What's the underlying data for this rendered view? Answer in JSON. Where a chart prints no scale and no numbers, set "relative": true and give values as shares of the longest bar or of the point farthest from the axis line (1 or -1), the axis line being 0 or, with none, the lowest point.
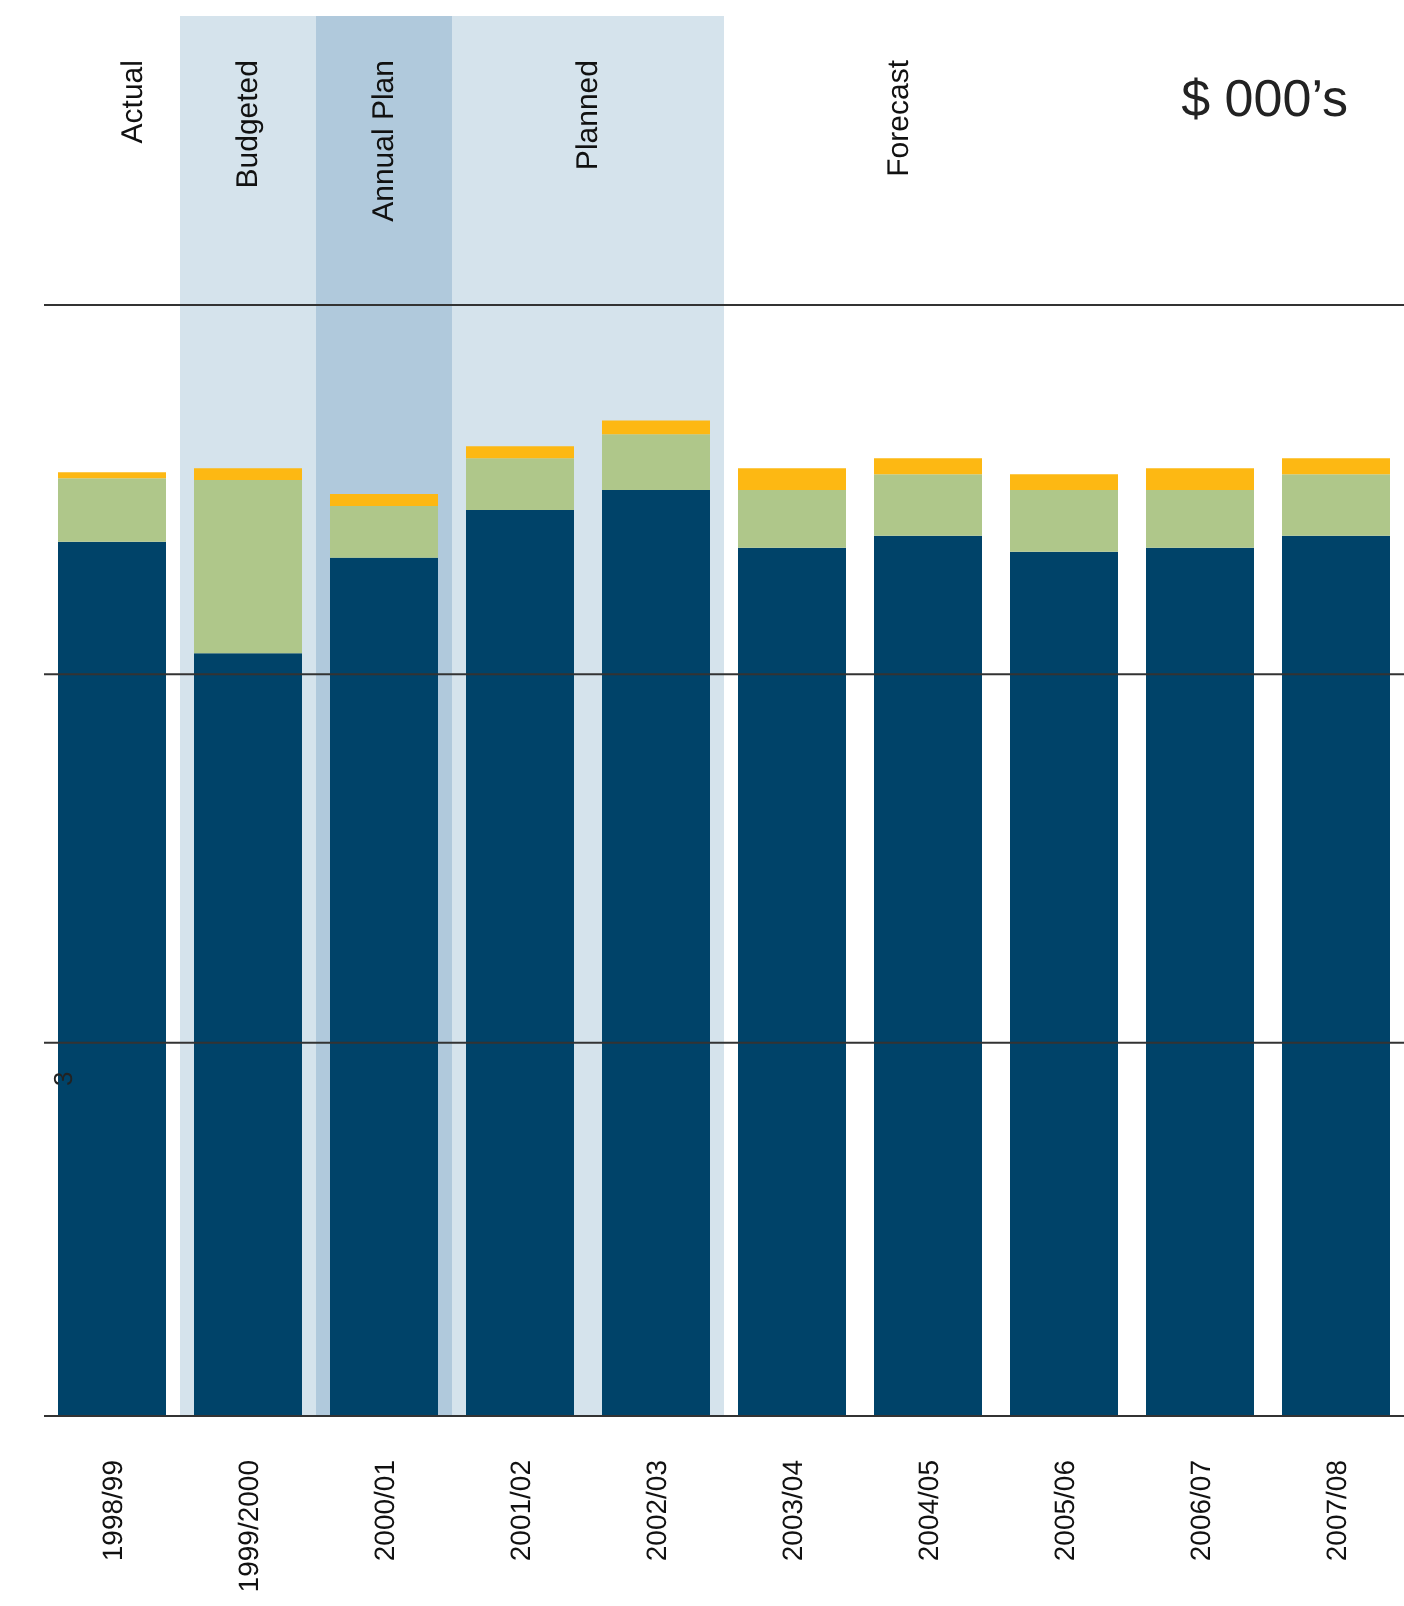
{
  "chart_data": {
    "type": "bar",
    "stacked": true,
    "relative": true,
    "categories": [
      "1998/99",
      "1999/2000",
      "2000/01",
      "2001/02",
      "2002/03",
      "2003/04",
      "2004/05",
      "2005/06",
      "2006/07",
      "2007/08"
    ],
    "series": [
      {
        "color": "#004369",
        "values": [
          0.878,
          0.766,
          0.862,
          0.91,
          0.93,
          0.872,
          0.884,
          0.868,
          0.872,
          0.884
        ]
      },
      {
        "color": "#afc78a",
        "values": [
          0.064,
          0.174,
          0.052,
          0.052,
          0.056,
          0.058,
          0.062,
          0.062,
          0.058,
          0.062
        ]
      },
      {
        "color": "#fdb813",
        "values": [
          0.006,
          0.012,
          0.012,
          0.012,
          0.014,
          0.022,
          0.016,
          0.016,
          0.022,
          0.016
        ]
      }
    ],
    "bands": [
      {
        "axis": "x",
        "from": "1999/2000",
        "to": "1999/2000",
        "label": "Budgeted",
        "color": "#d5e3ec"
      },
      {
        "axis": "x",
        "from": "2000/01",
        "to": "2000/01",
        "label": "Annual Plan",
        "color": "#b0c9dc"
      },
      {
        "axis": "x",
        "from": "2001/02",
        "to": "2002/03",
        "label": "Planned",
        "color": "#d5e3ec"
      }
    ],
    "ref_lines": [
      {
        "axis": "y",
        "value": 0.375,
        "color": "#333333"
      },
      {
        "axis": "y",
        "value": 0.745,
        "color": "#333333"
      },
      {
        "axis": "y",
        "value": 1.116,
        "color": "#333333"
      }
    ],
    "annotations": [
      "$ 000’s",
      "3",
      "Actual",
      "Forecast"
    ]
  }
}
